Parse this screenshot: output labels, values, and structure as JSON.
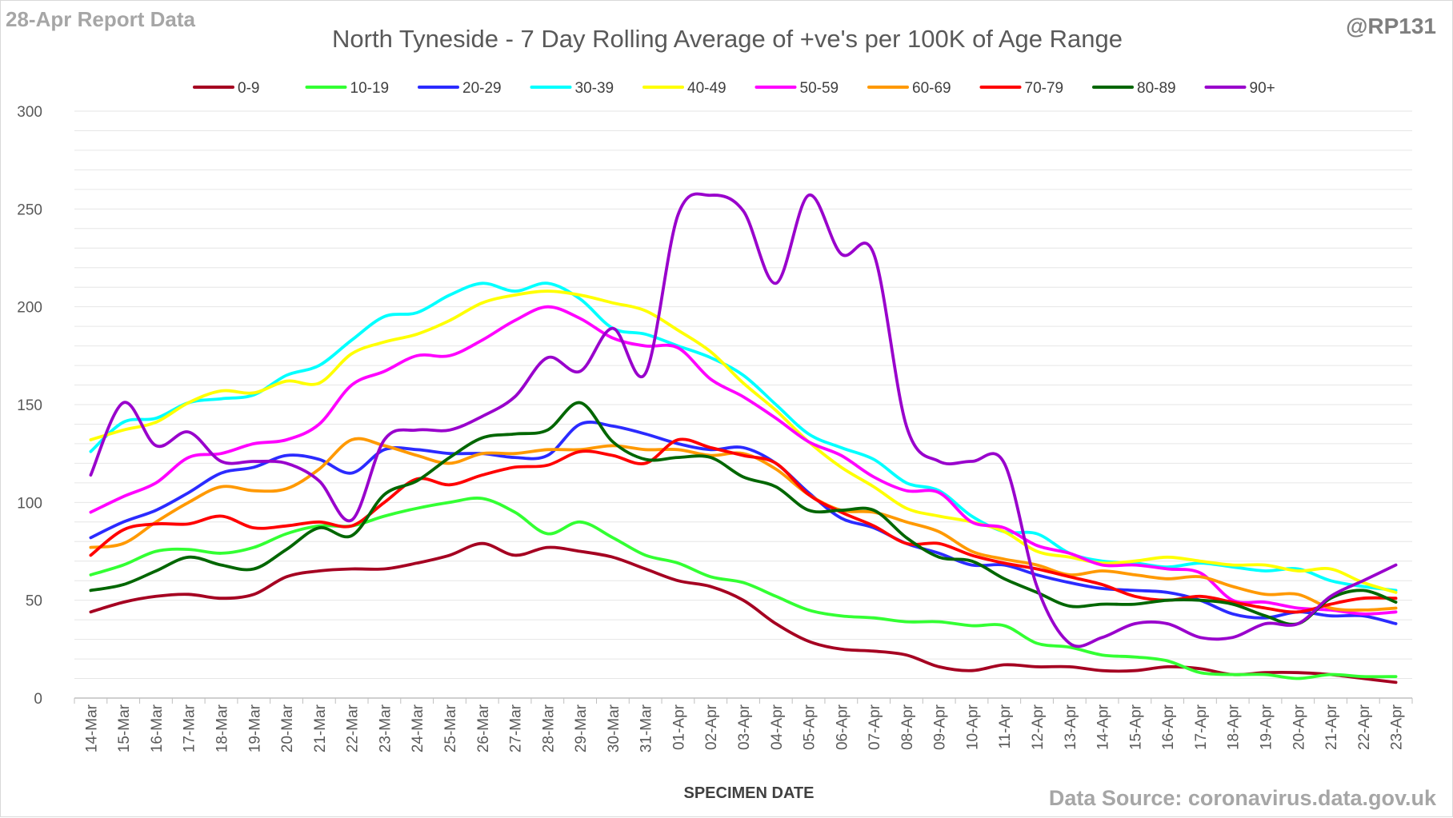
{
  "header": {
    "report_date": "28-Apr Report Data",
    "handle": "@RP131",
    "source": "Data Source: coronavirus.data.gov.uk"
  },
  "chart_data": {
    "type": "line",
    "title": "North Tyneside - 7 Day Rolling Average of +ve's per 100K of Age Range",
    "xlabel": "SPECIMEN DATE",
    "ylabel": "",
    "ylim": [
      0,
      300
    ],
    "yticks": [
      0,
      50,
      100,
      150,
      200,
      250,
      300
    ],
    "grid": true,
    "legend_position": "top",
    "categories": [
      "14-Mar",
      "15-Mar",
      "16-Mar",
      "17-Mar",
      "18-Mar",
      "19-Mar",
      "20-Mar",
      "21-Mar",
      "22-Mar",
      "23-Mar",
      "24-Mar",
      "25-Mar",
      "26-Mar",
      "27-Mar",
      "28-Mar",
      "29-Mar",
      "30-Mar",
      "31-Mar",
      "01-Apr",
      "02-Apr",
      "03-Apr",
      "04-Apr",
      "05-Apr",
      "06-Apr",
      "07-Apr",
      "08-Apr",
      "09-Apr",
      "10-Apr",
      "11-Apr",
      "12-Apr",
      "13-Apr",
      "14-Apr",
      "15-Apr",
      "16-Apr",
      "17-Apr",
      "18-Apr",
      "19-Apr",
      "20-Apr",
      "21-Apr",
      "22-Apr",
      "23-Apr"
    ],
    "series": [
      {
        "name": "0-9",
        "color": "#a50021",
        "values": [
          44,
          49,
          52,
          53,
          51,
          53,
          62,
          65,
          66,
          66,
          69,
          73,
          79,
          73,
          77,
          75,
          72,
          66,
          60,
          57,
          50,
          38,
          29,
          25,
          24,
          22,
          16,
          14,
          17,
          16,
          16,
          14,
          14,
          16,
          15,
          12,
          13,
          13,
          12,
          10,
          8
        ]
      },
      {
        "name": "10-19",
        "color": "#33ff33",
        "values": [
          63,
          68,
          75,
          76,
          74,
          77,
          84,
          88,
          88,
          93,
          97,
          100,
          102,
          95,
          84,
          90,
          82,
          73,
          69,
          62,
          59,
          52,
          45,
          42,
          41,
          39,
          39,
          37,
          37,
          28,
          26,
          22,
          21,
          19,
          13,
          12,
          12,
          10,
          12,
          11,
          11
        ]
      },
      {
        "name": "20-29",
        "color": "#2b2bff",
        "values": [
          82,
          90,
          96,
          105,
          115,
          118,
          124,
          122,
          115,
          127,
          127,
          125,
          125,
          123,
          124,
          140,
          139,
          135,
          130,
          127,
          128,
          120,
          105,
          92,
          87,
          79,
          74,
          68,
          68,
          63,
          59,
          56,
          55,
          54,
          50,
          43,
          41,
          44,
          42,
          42,
          38
        ]
      },
      {
        "name": "30-39",
        "color": "#00ffff",
        "values": [
          126,
          141,
          143,
          151,
          153,
          155,
          165,
          170,
          183,
          195,
          197,
          206,
          212,
          208,
          212,
          204,
          189,
          186,
          180,
          174,
          165,
          150,
          135,
          128,
          122,
          110,
          106,
          93,
          85,
          84,
          74,
          70,
          69,
          67,
          69,
          67,
          65,
          66,
          60,
          57,
          55
        ]
      },
      {
        "name": "40-49",
        "color": "#ffff00",
        "values": [
          132,
          137,
          141,
          151,
          157,
          156,
          162,
          161,
          176,
          182,
          186,
          193,
          202,
          206,
          208,
          206,
          202,
          198,
          188,
          177,
          161,
          147,
          131,
          118,
          108,
          97,
          93,
          90,
          85,
          75,
          72,
          69,
          70,
          72,
          70,
          68,
          68,
          65,
          66,
          59,
          54
        ]
      },
      {
        "name": "50-59",
        "color": "#ff00ff",
        "values": [
          95,
          103,
          110,
          123,
          125,
          130,
          132,
          140,
          160,
          167,
          175,
          175,
          183,
          193,
          200,
          194,
          184,
          180,
          179,
          163,
          154,
          143,
          131,
          124,
          113,
          106,
          105,
          90,
          87,
          78,
          74,
          68,
          68,
          66,
          64,
          50,
          49,
          46,
          45,
          43,
          44
        ]
      },
      {
        "name": "60-69",
        "color": "#ff9900",
        "values": [
          77,
          79,
          90,
          100,
          108,
          106,
          107,
          117,
          132,
          129,
          124,
          120,
          125,
          125,
          127,
          127,
          129,
          127,
          127,
          124,
          125,
          117,
          104,
          96,
          95,
          90,
          85,
          75,
          71,
          68,
          63,
          65,
          63,
          61,
          62,
          57,
          53,
          53,
          46,
          45,
          46
        ]
      },
      {
        "name": "70-79",
        "color": "#ff0000",
        "values": [
          73,
          86,
          89,
          89,
          93,
          87,
          88,
          90,
          88,
          100,
          112,
          109,
          114,
          118,
          119,
          126,
          124,
          120,
          132,
          128,
          124,
          120,
          104,
          95,
          88,
          79,
          79,
          73,
          69,
          66,
          62,
          58,
          52,
          50,
          52,
          49,
          46,
          44,
          48,
          51,
          51
        ]
      },
      {
        "name": "80-89",
        "color": "#006600",
        "values": [
          55,
          58,
          65,
          72,
          68,
          66,
          76,
          87,
          83,
          104,
          111,
          123,
          133,
          135,
          137,
          151,
          131,
          122,
          123,
          123,
          113,
          108,
          96,
          96,
          96,
          82,
          72,
          70,
          61,
          54,
          47,
          48,
          48,
          50,
          50,
          48,
          42,
          38,
          51,
          55,
          49
        ]
      },
      {
        "name": "90+",
        "color": "#9900cc",
        "values": [
          114,
          151,
          129,
          136,
          121,
          121,
          120,
          111,
          91,
          132,
          137,
          137,
          144,
          154,
          174,
          167,
          189,
          166,
          247,
          257,
          249,
          212,
          257,
          227,
          227,
          139,
          121,
          121,
          120,
          57,
          28,
          31,
          38,
          38,
          31,
          31,
          38,
          38,
          52,
          60,
          68
        ]
      }
    ]
  }
}
